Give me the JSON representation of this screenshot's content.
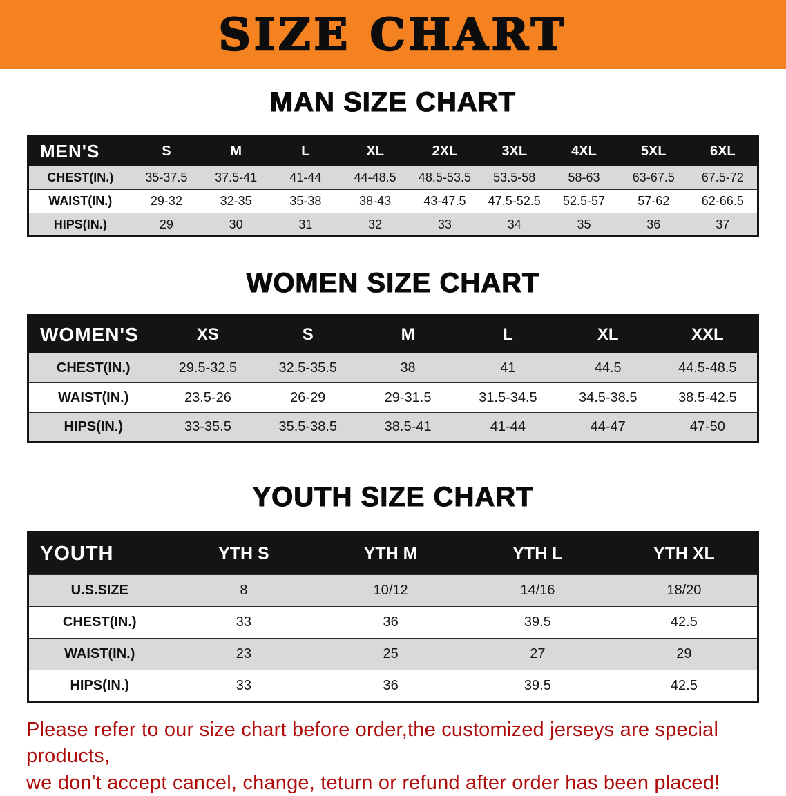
{
  "banner": {
    "title": "SIZE CHART"
  },
  "men": {
    "heading": "MAN SIZE CHART",
    "header": [
      "MEN'S",
      "S",
      "M",
      "L",
      "XL",
      "2XL",
      "3XL",
      "4XL",
      "5XL",
      "6XL"
    ],
    "rows": [
      {
        "label": "CHEST(IN.)",
        "values": [
          "35-37.5",
          "37.5-41",
          "41-44",
          "44-48.5",
          "48.5-53.5",
          "53.5-58",
          "58-63",
          "63-67.5",
          "67.5-72"
        ]
      },
      {
        "label": "WAIST(IN.)",
        "values": [
          "29-32",
          "32-35",
          "35-38",
          "38-43",
          "43-47.5",
          "47.5-52.5",
          "52.5-57",
          "57-62",
          "62-66.5"
        ]
      },
      {
        "label": "HIPS(IN.)",
        "values": [
          "29",
          "30",
          "31",
          "32",
          "33",
          "34",
          "35",
          "36",
          "37"
        ]
      }
    ]
  },
  "women": {
    "heading": "WOMEN SIZE CHART",
    "header": [
      "WOMEN'S",
      "XS",
      "S",
      "M",
      "L",
      "XL",
      "XXL"
    ],
    "rows": [
      {
        "label": "CHEST(IN.)",
        "values": [
          "29.5-32.5",
          "32.5-35.5",
          "38",
          "41",
          "44.5",
          "44.5-48.5"
        ]
      },
      {
        "label": "WAIST(IN.)",
        "values": [
          "23.5-26",
          "26-29",
          "29-31.5",
          "31.5-34.5",
          "34.5-38.5",
          "38.5-42.5"
        ]
      },
      {
        "label": "HIPS(IN.)",
        "values": [
          "33-35.5",
          "35.5-38.5",
          "38.5-41",
          "41-44",
          "44-47",
          "47-50"
        ]
      }
    ]
  },
  "youth": {
    "heading": "YOUTH SIZE CHART",
    "header": [
      "YOUTH",
      "YTH S",
      "YTH M",
      "YTH L",
      "YTH XL"
    ],
    "rows": [
      {
        "label": "U.S.SIZE",
        "values": [
          "8",
          "10/12",
          "14/16",
          "18/20"
        ]
      },
      {
        "label": "CHEST(IN.)",
        "values": [
          "33",
          "36",
          "39.5",
          "42.5"
        ]
      },
      {
        "label": "WAIST(IN.)",
        "values": [
          "23",
          "25",
          "27",
          "29"
        ]
      },
      {
        "label": "HIPS(IN.)",
        "values": [
          "33",
          "36",
          "39.5",
          "42.5"
        ]
      }
    ]
  },
  "footer": {
    "line1": "Please refer to our size chart before order,the customized jerseys are special products,",
    "line2": "we don't accept cancel, change, teturn or refund after order has been placed!"
  },
  "colors": {
    "banner_bg": "#F58220",
    "table_header_bg": "#141414",
    "row_shade": "#d9d9d9",
    "footer_text": "#b00b0b"
  }
}
